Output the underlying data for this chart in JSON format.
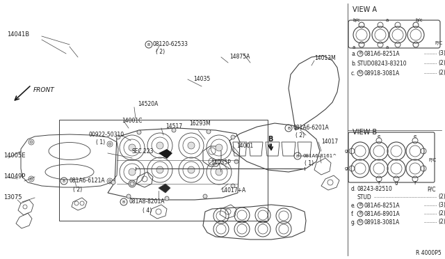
{
  "bg_color": "#ffffff",
  "line_color": "#404040",
  "text_color": "#1a1a1a",
  "view_a_title": "VIEW A",
  "view_b_title": "VIEW B",
  "ref_code": "R 4000P5",
  "view_a_legend": [
    {
      "letter": "a.",
      "circle": "B",
      "part": "081A6-8251A",
      "dots": true,
      "qty": "(3)"
    },
    {
      "letter": "b.",
      "circle": null,
      "part": "STUD08243-83210",
      "dots": true,
      "qty": "(2)"
    },
    {
      "letter": "c.",
      "circle": "N",
      "part": "08918-3081A",
      "dots": true,
      "qty": "(2)"
    }
  ],
  "view_b_legend": [
    {
      "letter": "d.",
      "circle": null,
      "part": "08243-82510",
      "part2": "STUD",
      "dots": true,
      "qty": "P/C",
      "qty2": "(2)"
    },
    {
      "letter": "e.",
      "circle": "B",
      "part": "081A6-8251A",
      "dots": true,
      "qty": "(3)"
    },
    {
      "letter": "f.",
      "circle": "B",
      "part": "081A6-8901A",
      "dots": true,
      "qty": "(2)"
    },
    {
      "letter": "g.",
      "circle": "N",
      "part": "08918-3081A",
      "dots": true,
      "qty": "(2)"
    }
  ]
}
